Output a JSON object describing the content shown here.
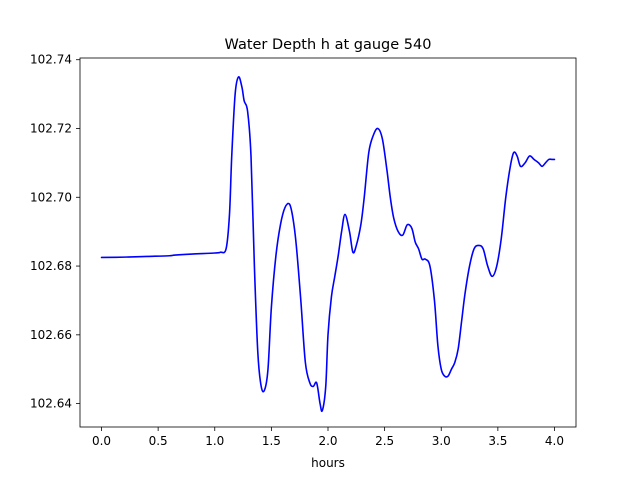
{
  "chart_data": {
    "type": "line",
    "title": "Water Depth h at gauge 540",
    "xlabel": "hours",
    "ylabel": "",
    "xlim": [
      -0.19,
      4.19
    ],
    "ylim": [
      102.6332,
      102.7405
    ],
    "xticks": [
      0.0,
      0.5,
      1.0,
      1.5,
      2.0,
      2.5,
      3.0,
      3.5,
      4.0
    ],
    "xtick_labels": [
      "0.0",
      "0.5",
      "1.0",
      "1.5",
      "2.0",
      "2.5",
      "3.0",
      "3.5",
      "4.0"
    ],
    "yticks": [
      102.64,
      102.66,
      102.68,
      102.7,
      102.72,
      102.74
    ],
    "ytick_labels": [
      "102.64",
      "102.66",
      "102.68",
      "102.70",
      "102.72",
      "102.74"
    ],
    "grid": false,
    "series": [
      {
        "color": "#0000ff",
        "x": [
          0.0,
          0.2,
          0.4,
          0.6,
          0.65,
          0.8,
          1.0,
          1.05,
          1.1,
          1.13,
          1.15,
          1.18,
          1.21,
          1.24,
          1.26,
          1.29,
          1.32,
          1.35,
          1.38,
          1.41,
          1.44,
          1.47,
          1.5,
          1.54,
          1.58,
          1.62,
          1.66,
          1.69,
          1.72,
          1.76,
          1.8,
          1.84,
          1.87,
          1.9,
          1.93,
          1.95,
          1.98,
          2.0,
          2.03,
          2.06,
          2.09,
          2.12,
          2.15,
          2.19,
          2.22,
          2.25,
          2.29,
          2.32,
          2.36,
          2.4,
          2.44,
          2.48,
          2.52,
          2.55,
          2.58,
          2.62,
          2.66,
          2.7,
          2.74,
          2.77,
          2.8,
          2.83,
          2.86,
          2.9,
          2.94,
          2.97,
          3.0,
          3.03,
          3.06,
          3.09,
          3.12,
          3.15,
          3.18,
          3.21,
          3.25,
          3.29,
          3.33,
          3.37,
          3.41,
          3.45,
          3.49,
          3.53,
          3.57,
          3.61,
          3.64,
          3.67,
          3.7,
          3.74,
          3.78,
          3.82,
          3.86,
          3.89,
          3.92,
          3.95,
          3.98,
          4.0
        ],
        "y": [
          102.6825,
          102.6826,
          102.6828,
          102.683,
          102.6832,
          102.6835,
          102.6838,
          102.684,
          102.685,
          102.695,
          102.712,
          102.73,
          102.735,
          102.732,
          102.728,
          102.725,
          102.712,
          102.68,
          102.655,
          102.645,
          102.644,
          102.65,
          102.668,
          102.683,
          102.692,
          102.697,
          102.698,
          102.694,
          102.686,
          102.67,
          102.652,
          102.646,
          102.645,
          102.646,
          102.64,
          102.638,
          102.645,
          102.66,
          102.671,
          102.677,
          102.683,
          102.69,
          102.695,
          102.69,
          102.684,
          102.686,
          102.692,
          102.7,
          102.713,
          102.718,
          102.72,
          102.717,
          102.708,
          102.7,
          102.694,
          102.69,
          102.689,
          102.692,
          102.691,
          102.687,
          102.685,
          102.682,
          102.682,
          102.68,
          102.67,
          102.657,
          102.65,
          102.648,
          102.648,
          102.65,
          102.652,
          102.656,
          102.664,
          102.672,
          102.68,
          102.685,
          102.686,
          102.685,
          102.68,
          102.677,
          102.68,
          102.688,
          102.7,
          102.709,
          102.713,
          102.712,
          102.709,
          102.71,
          102.712,
          102.711,
          102.71,
          102.709,
          102.71,
          102.711,
          102.711,
          102.711
        ]
      }
    ]
  }
}
